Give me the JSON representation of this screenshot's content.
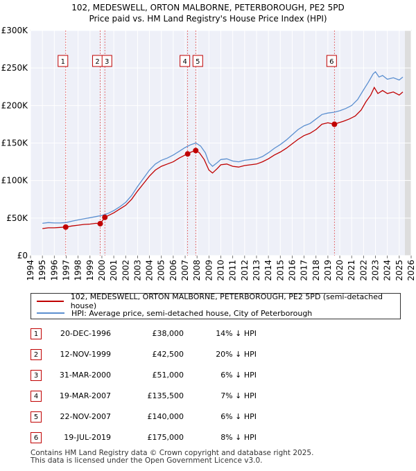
{
  "chart_data": {
    "type": "line",
    "title": "102, MEDESWELL, ORTON MALBORNE, PETERBOROUGH, PE2 5PD",
    "subtitle": "Price paid vs. HM Land Registry's House Price Index (HPI)",
    "xlabel": "",
    "ylabel": "",
    "xlim": [
      1994,
      2026
    ],
    "ylim": [
      0,
      300000
    ],
    "x_ticks": [
      "1994",
      "1995",
      "1996",
      "1997",
      "1998",
      "1999",
      "2000",
      "2001",
      "2002",
      "2003",
      "2004",
      "2005",
      "2006",
      "2007",
      "2008",
      "2009",
      "2010",
      "2011",
      "2012",
      "2013",
      "2014",
      "2015",
      "2016",
      "2017",
      "2018",
      "2019",
      "2020",
      "2021",
      "2022",
      "2023",
      "2024",
      "2025",
      "2026"
    ],
    "y_ticks": [
      {
        "value": 0,
        "label": "£0"
      },
      {
        "value": 50000,
        "label": "£50K"
      },
      {
        "value": 100000,
        "label": "£100K"
      },
      {
        "value": 150000,
        "label": "£150K"
      },
      {
        "value": 200000,
        "label": "£200K"
      },
      {
        "value": 250000,
        "label": "£250K"
      },
      {
        "value": 300000,
        "label": "£300K"
      }
    ],
    "grid": true,
    "series": [
      {
        "name": "102, MEDESWELL, ORTON MALBORNE, PETERBOROUGH, PE2 5PD (semi-detached house)",
        "color": "#c00000",
        "points": [
          [
            1995.0,
            36000
          ],
          [
            1995.5,
            37000
          ],
          [
            1996.0,
            37000
          ],
          [
            1996.96,
            38000
          ],
          [
            1997.5,
            39500
          ],
          [
            1998.0,
            40500
          ],
          [
            1998.5,
            41500
          ],
          [
            1999.0,
            42000
          ],
          [
            1999.5,
            43000
          ],
          [
            1999.86,
            42500
          ],
          [
            2000.25,
            51000
          ],
          [
            2000.5,
            53000
          ],
          [
            2001.0,
            57000
          ],
          [
            2001.5,
            62000
          ],
          [
            2002.0,
            67000
          ],
          [
            2002.5,
            75000
          ],
          [
            2003.0,
            86000
          ],
          [
            2003.5,
            96000
          ],
          [
            2004.0,
            106000
          ],
          [
            2004.5,
            114000
          ],
          [
            2005.0,
            119000
          ],
          [
            2005.5,
            122000
          ],
          [
            2006.0,
            125000
          ],
          [
            2006.5,
            130000
          ],
          [
            2007.0,
            134000
          ],
          [
            2007.21,
            135500
          ],
          [
            2007.5,
            138000
          ],
          [
            2007.89,
            140000
          ],
          [
            2008.2,
            137000
          ],
          [
            2008.6,
            128000
          ],
          [
            2009.0,
            114000
          ],
          [
            2009.3,
            110000
          ],
          [
            2009.7,
            116000
          ],
          [
            2010.0,
            121000
          ],
          [
            2010.5,
            122000
          ],
          [
            2011.0,
            119000
          ],
          [
            2011.5,
            118000
          ],
          [
            2012.0,
            120000
          ],
          [
            2012.5,
            121000
          ],
          [
            2013.0,
            122000
          ],
          [
            2013.5,
            125000
          ],
          [
            2014.0,
            129000
          ],
          [
            2014.5,
            134000
          ],
          [
            2015.0,
            138000
          ],
          [
            2015.5,
            143000
          ],
          [
            2016.0,
            149000
          ],
          [
            2016.5,
            155000
          ],
          [
            2017.0,
            160000
          ],
          [
            2017.5,
            163000
          ],
          [
            2018.0,
            168000
          ],
          [
            2018.5,
            175000
          ],
          [
            2019.0,
            177000
          ],
          [
            2019.55,
            175000
          ],
          [
            2019.9,
            177000
          ],
          [
            2020.3,
            179000
          ],
          [
            2020.8,
            182000
          ],
          [
            2021.3,
            186000
          ],
          [
            2021.8,
            194000
          ],
          [
            2022.2,
            205000
          ],
          [
            2022.6,
            214000
          ],
          [
            2022.9,
            224000
          ],
          [
            2023.2,
            216000
          ],
          [
            2023.6,
            220000
          ],
          [
            2024.0,
            216000
          ],
          [
            2024.5,
            218000
          ],
          [
            2025.0,
            214000
          ],
          [
            2025.3,
            218000
          ]
        ]
      },
      {
        "name": "HPI: Average price, semi-detached house, City of Peterborough",
        "color": "#5b8fd0",
        "points": [
          [
            1995.0,
            43000
          ],
          [
            1995.5,
            44000
          ],
          [
            1996.0,
            43500
          ],
          [
            1996.5,
            43500
          ],
          [
            1997.0,
            44000
          ],
          [
            1997.5,
            46000
          ],
          [
            1998.0,
            47500
          ],
          [
            1998.5,
            49000
          ],
          [
            1999.0,
            50500
          ],
          [
            1999.5,
            52000
          ],
          [
            2000.0,
            53500
          ],
          [
            2000.5,
            56000
          ],
          [
            2001.0,
            60000
          ],
          [
            2001.5,
            65000
          ],
          [
            2002.0,
            71000
          ],
          [
            2002.5,
            80000
          ],
          [
            2003.0,
            92000
          ],
          [
            2003.5,
            103000
          ],
          [
            2004.0,
            114000
          ],
          [
            2004.5,
            122000
          ],
          [
            2005.0,
            127000
          ],
          [
            2005.5,
            130000
          ],
          [
            2006.0,
            134000
          ],
          [
            2006.5,
            139000
          ],
          [
            2007.0,
            144000
          ],
          [
            2007.5,
            148000
          ],
          [
            2007.9,
            150000
          ],
          [
            2008.3,
            146000
          ],
          [
            2008.7,
            137000
          ],
          [
            2009.0,
            124000
          ],
          [
            2009.3,
            119000
          ],
          [
            2009.7,
            124000
          ],
          [
            2010.0,
            128000
          ],
          [
            2010.5,
            129000
          ],
          [
            2011.0,
            126000
          ],
          [
            2011.5,
            125000
          ],
          [
            2012.0,
            127000
          ],
          [
            2012.5,
            128000
          ],
          [
            2013.0,
            129000
          ],
          [
            2013.5,
            132000
          ],
          [
            2014.0,
            137000
          ],
          [
            2014.5,
            143000
          ],
          [
            2015.0,
            148000
          ],
          [
            2015.5,
            154000
          ],
          [
            2016.0,
            161000
          ],
          [
            2016.5,
            168000
          ],
          [
            2017.0,
            173000
          ],
          [
            2017.5,
            176000
          ],
          [
            2018.0,
            182000
          ],
          [
            2018.5,
            188000
          ],
          [
            2019.0,
            190000
          ],
          [
            2019.5,
            191000
          ],
          [
            2020.0,
            193000
          ],
          [
            2020.5,
            196000
          ],
          [
            2021.0,
            200000
          ],
          [
            2021.5,
            208000
          ],
          [
            2022.0,
            221000
          ],
          [
            2022.4,
            231000
          ],
          [
            2022.8,
            242000
          ],
          [
            2023.0,
            245000
          ],
          [
            2023.3,
            238000
          ],
          [
            2023.6,
            240000
          ],
          [
            2024.0,
            235000
          ],
          [
            2024.5,
            237000
          ],
          [
            2025.0,
            234000
          ],
          [
            2025.3,
            238000
          ]
        ]
      }
    ],
    "sales": [
      {
        "n": "1",
        "x": 1996.96,
        "y": 38000
      },
      {
        "n": "2",
        "x": 1999.86,
        "y": 42500
      },
      {
        "n": "3",
        "x": 2000.25,
        "y": 51000
      },
      {
        "n": "4",
        "x": 2007.21,
        "y": 135500
      },
      {
        "n": "5",
        "x": 2007.89,
        "y": 140000
      },
      {
        "n": "6",
        "x": 2019.55,
        "y": 175000
      }
    ]
  },
  "legend": {
    "property_label": "102, MEDESWELL, ORTON MALBORNE, PETERBOROUGH, PE2 5PD (semi-detached house)",
    "hpi_label": "HPI: Average price, semi-detached house, City of Peterborough",
    "property_color": "#c00000",
    "hpi_color": "#5b8fd0"
  },
  "sales_table": [
    {
      "n": "1",
      "date": "20-DEC-1996",
      "price": "£38,000",
      "hpi": "14% ↓ HPI"
    },
    {
      "n": "2",
      "date": "12-NOV-1999",
      "price": "£42,500",
      "hpi": "20% ↓ HPI"
    },
    {
      "n": "3",
      "date": "31-MAR-2000",
      "price": "£51,000",
      "hpi": "6% ↓ HPI"
    },
    {
      "n": "4",
      "date": "19-MAR-2007",
      "price": "£135,500",
      "hpi": "7% ↓ HPI"
    },
    {
      "n": "5",
      "date": "22-NOV-2007",
      "price": "£140,000",
      "hpi": "6% ↓ HPI"
    },
    {
      "n": "6",
      "date": "19-JUL-2019",
      "price": "£175,000",
      "hpi": "8% ↓ HPI"
    }
  ],
  "footer": {
    "line1": "Contains HM Land Registry data © Crown copyright and database right 2025.",
    "line2": "This data is licensed under the Open Government Licence v3.0."
  }
}
